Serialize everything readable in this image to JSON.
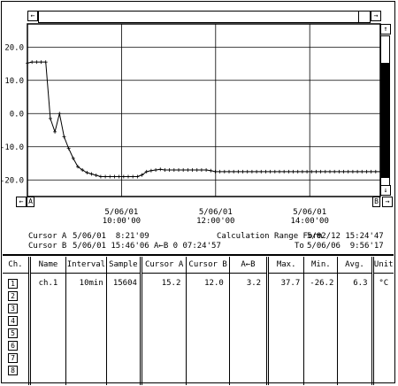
{
  "chart_data": {
    "type": "line",
    "yticks": [
      "20.0",
      "10.0",
      "0.0",
      "-10.0",
      "-20.0"
    ],
    "ylim": [
      -25,
      27
    ],
    "x": [
      0,
      0.05,
      0.1,
      0.15,
      0.2,
      0.25,
      0.3,
      0.35,
      0.4,
      0.45,
      0.5,
      0.55,
      0.6,
      0.65,
      0.7,
      0.75,
      0.8,
      0.85,
      0.9,
      0.95,
      1.0,
      1.05,
      1.1,
      1.15,
      1.2,
      1.25,
      1.3,
      1.35,
      1.4,
      1.45,
      1.5,
      1.55,
      1.6,
      1.65,
      1.7,
      1.75,
      1.8,
      1.85,
      1.9,
      1.95,
      2.0,
      2.05,
      2.1,
      2.15,
      2.2,
      2.25,
      2.3,
      2.35,
      2.4,
      2.45,
      2.5,
      2.55,
      2.6,
      2.65,
      2.7,
      2.75,
      2.8,
      2.85,
      2.9,
      2.95,
      3.0,
      3.05,
      3.1,
      3.15,
      3.2,
      3.25,
      3.3,
      3.35,
      3.4,
      3.45,
      3.5,
      3.55,
      3.6,
      3.65,
      3.7,
      3.75,
      3.8,
      3.85
    ],
    "values": [
      15.2,
      15.5,
      15.5,
      15.5,
      15.5,
      -1.5,
      -5.5,
      0.0,
      -7.0,
      -10.5,
      -13.5,
      -16.0,
      -17.0,
      -17.8,
      -18.2,
      -18.6,
      -19.0,
      -19.0,
      -19.0,
      -19.0,
      -19.0,
      -19.0,
      -19.0,
      -19.0,
      -19.0,
      -18.5,
      -17.5,
      -17.2,
      -17.0,
      -16.8,
      -17.0,
      -17.0,
      -17.0,
      -17.0,
      -17.0,
      -17.0,
      -17.0,
      -17.0,
      -17.0,
      -17.0,
      -17.2,
      -17.5,
      -17.5,
      -17.5,
      -17.5,
      -17.5,
      -17.5,
      -17.5,
      -17.5,
      -17.5,
      -17.5,
      -17.5,
      -17.5,
      -17.5,
      -17.5,
      -17.5,
      -17.5,
      -17.5,
      -17.5,
      -17.5,
      -17.5,
      -17.5,
      -17.5,
      -17.5,
      -17.5,
      -17.5,
      -17.5,
      -17.5,
      -17.5,
      -17.5,
      -17.5,
      -17.5,
      -17.5,
      -17.5,
      -17.5,
      -17.5,
      -17.5,
      -17.5
    ],
    "xlabels": [
      {
        "date": "5/06/01",
        "time": "10:00'00"
      },
      {
        "date": "5/06/01",
        "time": "12:00'00"
      },
      {
        "date": "5/06/01",
        "time": "14:00'00"
      }
    ]
  },
  "graph": {
    "marker_a": "A",
    "marker_b": "B"
  },
  "cursor": {
    "a_label": "Cursor A",
    "a_value": "5/06/01  8:21'09",
    "b_label": "Cursor B",
    "b_value": "5/06/01 15:46'06",
    "diff_label": "A←B 0 07:24'57"
  },
  "range": {
    "form_label": "Calculation Range Form",
    "form_value": "5/02/12 15:24'47",
    "to_label": "To",
    "to_value": "5/06/06  9:56'17"
  },
  "table": {
    "headers": [
      "Ch.",
      "Name",
      "Interval",
      "Sample",
      "Cursor A",
      "Cursor B",
      "A←B",
      "Max.",
      "Min.",
      "Avg.",
      "Unit"
    ],
    "row": {
      "name": "ch.1",
      "interval": "10min",
      "sample": "15604",
      "cursor_a": "15.2",
      "cursor_b": "12.0",
      "diff": "3.2",
      "max": "37.7",
      "min": "-26.2",
      "avg": "6.3",
      "unit": "°C"
    },
    "channels": [
      "1",
      "2",
      "3",
      "4",
      "5",
      "6",
      "7",
      "8"
    ]
  },
  "icons": {
    "left_arrow": "←",
    "right_arrow": "→",
    "up_arrow": "↑",
    "down_arrow": "↓"
  }
}
